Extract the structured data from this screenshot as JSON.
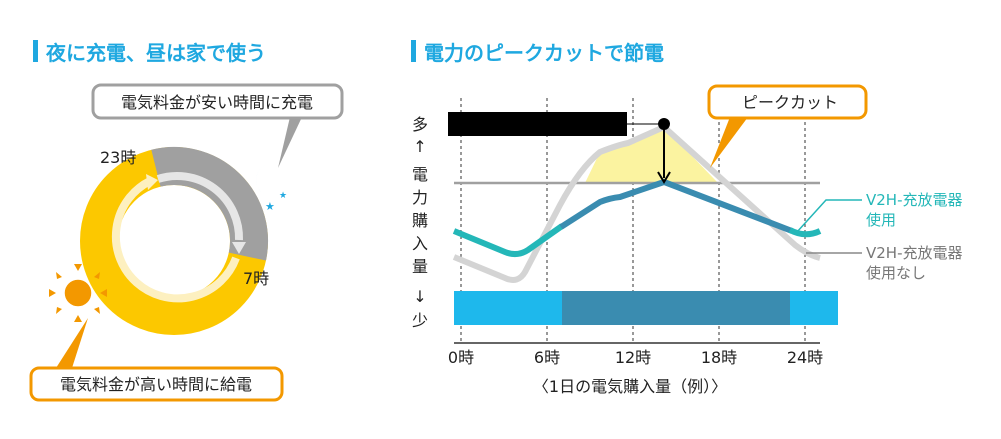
{
  "left": {
    "title": "夜に充電、昼は家で使う",
    "callout_night": "電気料金が安い時間に充電",
    "callout_day": "電気料金が高い時間に給電",
    "label_23": "23時",
    "label_7": "7時",
    "icons": [
      "moon-icon",
      "star-icon",
      "sun-icon"
    ]
  },
  "right": {
    "title": "電力のピークカットで節電",
    "callout_peak": "ピークカット",
    "y_axis": [
      "多",
      "↑",
      "電",
      "力",
      "購",
      "入",
      "量",
      "↓",
      "少"
    ],
    "x_ticks": [
      "0時",
      "6時",
      "12時",
      "18時",
      "24時"
    ],
    "x_caption": "〈1日の電気購入量（例）〉",
    "legend_with": [
      "V2H-充放電器",
      "使用"
    ],
    "legend_without": [
      "V2H-充放電器",
      "使用なし"
    ]
  },
  "colors": {
    "accent": "#1fa8e0",
    "yellow": "#fcc800",
    "gray": "#a0a0a0",
    "orange": "#f39800",
    "teal": "#24b7b8",
    "blue": "#3a8cb0",
    "cyan": "#1eb8ec",
    "peak_fill": "#fbf3a0"
  }
}
